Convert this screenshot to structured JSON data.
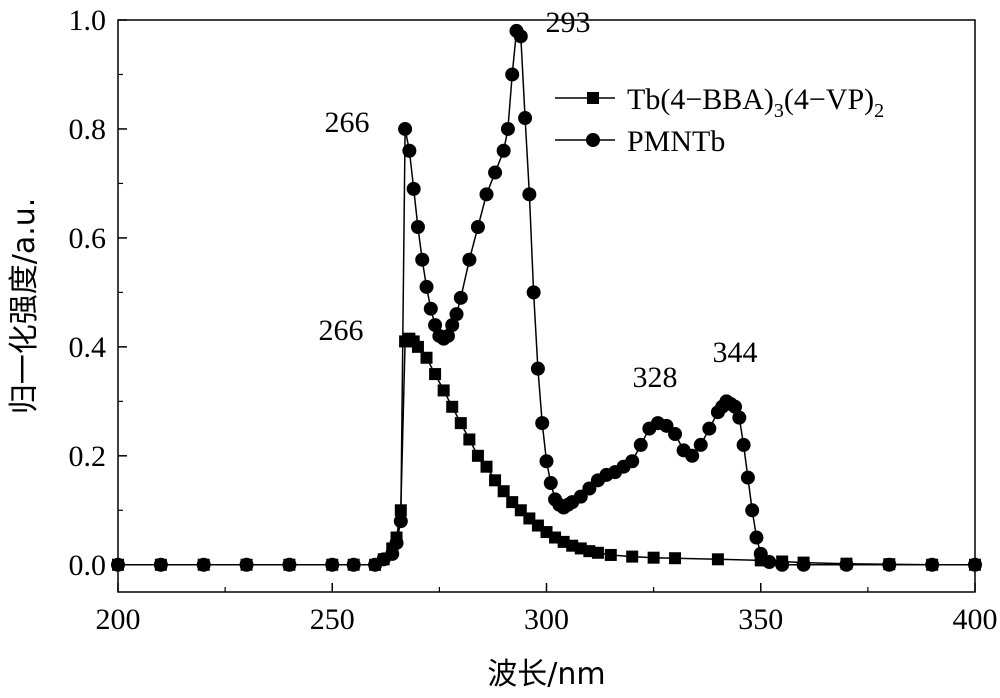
{
  "chart_data": {
    "type": "line",
    "title": "",
    "xlabel": "波长/nm",
    "ylabel": "归一化强度/a.u.",
    "xlim": [
      200,
      400
    ],
    "ylim": [
      -0.05,
      1.0
    ],
    "xticks": [
      200,
      250,
      300,
      350,
      400
    ],
    "yticks": [
      0.0,
      0.2,
      0.4,
      0.6,
      0.8,
      1.0
    ],
    "xtick_labels": [
      "200",
      "250",
      "300",
      "350",
      "400"
    ],
    "ytick_labels": [
      "0.0",
      "0.2",
      "0.4",
      "0.6",
      "0.8",
      "1.0"
    ],
    "grid": false,
    "legend_position": "top-right",
    "series": [
      {
        "label_parts": [
          "Tb(4−BBA)",
          "3",
          "(4−VP)",
          "2"
        ],
        "marker": "square",
        "x": [
          200,
          210,
          220,
          230,
          240,
          250,
          255,
          260,
          262,
          264,
          265,
          266,
          267,
          268,
          269,
          270,
          272,
          274,
          276,
          278,
          280,
          282,
          284,
          286,
          288,
          290,
          292,
          294,
          296,
          298,
          300,
          302,
          304,
          306,
          308,
          310,
          312,
          315,
          320,
          325,
          330,
          340,
          350,
          355,
          360,
          370,
          380,
          390,
          400
        ],
        "y": [
          0.0,
          0.0,
          0.0,
          0.0,
          0.0,
          0.0,
          0.0,
          0.0,
          0.01,
          0.03,
          0.05,
          0.1,
          0.41,
          0.415,
          0.41,
          0.4,
          0.38,
          0.35,
          0.32,
          0.29,
          0.26,
          0.23,
          0.2,
          0.18,
          0.155,
          0.135,
          0.115,
          0.1,
          0.085,
          0.072,
          0.06,
          0.05,
          0.042,
          0.035,
          0.03,
          0.025,
          0.022,
          0.018,
          0.015,
          0.013,
          0.012,
          0.01,
          0.008,
          0.006,
          0.004,
          0.002,
          0.001,
          0.0,
          0.0
        ]
      },
      {
        "label_parts": [
          "PMNTb"
        ],
        "marker": "circle",
        "x": [
          200,
          210,
          220,
          230,
          240,
          250,
          255,
          260,
          262,
          264,
          265,
          266,
          267,
          268,
          269,
          270,
          271,
          272,
          273,
          274,
          275,
          276,
          277,
          278,
          279,
          280,
          282,
          284,
          286,
          288,
          290,
          291,
          292,
          293,
          294,
          295,
          296,
          297,
          298,
          299,
          300,
          301,
          302,
          303,
          304,
          305,
          306,
          308,
          310,
          312,
          314,
          316,
          318,
          320,
          322,
          324,
          326,
          328,
          330,
          332,
          334,
          336,
          338,
          340,
          341,
          342,
          343,
          344,
          345,
          346,
          347,
          348,
          349,
          350,
          352,
          355,
          360,
          370,
          380,
          390,
          400
        ],
        "y": [
          0.0,
          0.0,
          0.0,
          0.0,
          0.0,
          0.0,
          0.0,
          0.0,
          0.01,
          0.02,
          0.04,
          0.08,
          0.8,
          0.76,
          0.69,
          0.62,
          0.56,
          0.51,
          0.47,
          0.44,
          0.42,
          0.415,
          0.42,
          0.44,
          0.46,
          0.49,
          0.56,
          0.62,
          0.68,
          0.72,
          0.76,
          0.8,
          0.9,
          0.98,
          0.97,
          0.82,
          0.68,
          0.5,
          0.36,
          0.26,
          0.19,
          0.15,
          0.12,
          0.11,
          0.105,
          0.11,
          0.115,
          0.125,
          0.14,
          0.155,
          0.165,
          0.17,
          0.18,
          0.19,
          0.22,
          0.25,
          0.26,
          0.255,
          0.24,
          0.21,
          0.2,
          0.22,
          0.25,
          0.28,
          0.29,
          0.3,
          0.295,
          0.29,
          0.27,
          0.22,
          0.16,
          0.1,
          0.05,
          0.02,
          0.005,
          0.0,
          0.0,
          0.0,
          0.0,
          0.0,
          0.0
        ]
      }
    ],
    "annotations": [
      {
        "text": "266",
        "x": 265,
        "y": 0.8
      },
      {
        "text": "293",
        "x": 293,
        "y": 0.98
      },
      {
        "text": "266",
        "x": 267,
        "y": 0.415
      },
      {
        "text": "328",
        "x": 328,
        "y": 0.26
      },
      {
        "text": "344",
        "x": 344,
        "y": 0.3
      }
    ]
  }
}
